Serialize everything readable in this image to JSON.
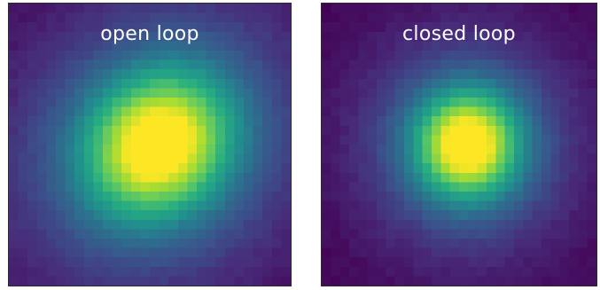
{
  "panels": [
    {
      "id": "open",
      "label": "open loop",
      "grid": 30,
      "peak": [
        0.53,
        0.5
      ],
      "spread": [
        5.2,
        5.2
      ],
      "tilt": 0.35
    },
    {
      "id": "closed",
      "label": "closed loop",
      "grid": 30,
      "peak": [
        0.53,
        0.5
      ],
      "spread": [
        3.8,
        3.8
      ],
      "tilt": 0.0
    }
  ],
  "colormap": "viridis",
  "colors": {
    "background": "#440154",
    "peak": "#fde725"
  }
}
